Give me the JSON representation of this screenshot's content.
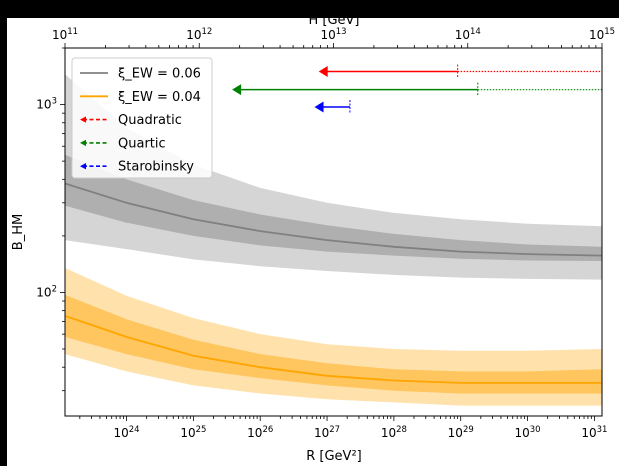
{
  "chart_data": {
    "type": "line",
    "x_scale": "log",
    "y_scale": "log",
    "xlabel": "R [GeV²]",
    "ylabel": "B_HM",
    "top_axis_label": "H [GeV]",
    "xlim": [
      1.2e+23,
      1.3e+31
    ],
    "ylim": [
      22,
      2000
    ],
    "x_ticks": [
      {
        "value": 1e+24,
        "label": "10^24"
      },
      {
        "value": 1e+25,
        "label": "10^25"
      },
      {
        "value": 1e+26,
        "label": "10^26"
      },
      {
        "value": 1e+27,
        "label": "10^27"
      },
      {
        "value": 1e+28,
        "label": "10^28"
      },
      {
        "value": 1e+29,
        "label": "10^29"
      },
      {
        "value": 1e+30,
        "label": "10^30"
      },
      {
        "value": 1e+31,
        "label": "10^31"
      }
    ],
    "top_ticks": [
      {
        "value": 100000000000.0,
        "label": "10^11"
      },
      {
        "value": 1000000000000.0,
        "label": "10^12"
      },
      {
        "value": 10000000000000.0,
        "label": "10^13"
      },
      {
        "value": 100000000000000.0,
        "label": "10^14"
      },
      {
        "value": 1000000000000000.0,
        "label": "10^15"
      }
    ],
    "y_ticks": [
      {
        "value": 100,
        "label": "10^2"
      },
      {
        "value": 1000,
        "label": "10^3"
      }
    ],
    "grid": false,
    "legend_position": "top-left",
    "x": [
      1.2e+23,
      1e+24,
      1e+25,
      1e+26,
      1e+27,
      1e+28,
      1e+29,
      1e+30,
      1.3e+31
    ],
    "series": [
      {
        "name": "ξ_EW = 0.06",
        "color": "#808080",
        "values": [
          380,
          300,
          245,
          212,
          190,
          175,
          165,
          160,
          157
        ],
        "band_inner": {
          "low": [
            290,
            235,
            200,
            178,
            165,
            157,
            151,
            148,
            147
          ],
          "high": [
            540,
            400,
            310,
            260,
            228,
            205,
            190,
            180,
            175
          ]
        },
        "band_outer": {
          "low": [
            190,
            170,
            150,
            138,
            130,
            124,
            120,
            118,
            117
          ],
          "high": [
            1450,
            750,
            480,
            360,
            300,
            265,
            245,
            232,
            225
          ]
        }
      },
      {
        "name": "ξ_EW = 0.04",
        "color": "#ffa500",
        "values": [
          75,
          58,
          46,
          40,
          36,
          34,
          33,
          33,
          33
        ],
        "band_inner": {
          "low": [
            58,
            47,
            39,
            35,
            32,
            30,
            29,
            29,
            29
          ],
          "high": [
            97,
            72,
            56,
            47,
            42,
            39,
            38,
            38,
            39
          ]
        },
        "band_outer": {
          "low": [
            47,
            38,
            32,
            29,
            27,
            26,
            25,
            25,
            25
          ],
          "high": [
            135,
            96,
            73,
            60,
            53,
            50,
            49,
            49,
            50
          ]
        }
      }
    ],
    "arrows": [
      {
        "name": "Quadratic",
        "color": "#ff0000",
        "y": 1500,
        "x_solid_start": 9e+28,
        "x_head": 7.5e+26,
        "x_dotted_end": 1.3e+31
      },
      {
        "name": "Quartic",
        "color": "#008000",
        "y": 1200,
        "x_solid_start": 1.8e+29,
        "x_head": 3.8e+25,
        "x_dotted_end": 1.3e+31
      },
      {
        "name": "Starobinsky",
        "color": "#0000ff",
        "y": 970,
        "x_solid_start": 2.2e+27,
        "x_head": 6.5e+26,
        "x_dotted_end": null
      }
    ]
  }
}
